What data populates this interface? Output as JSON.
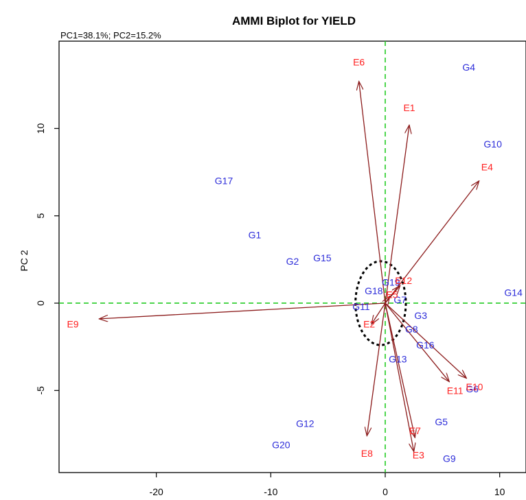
{
  "chart_data": {
    "type": "scatter",
    "title": "AMMI Biplot for YIELD",
    "subtitle": "PC1=38.1%; PC2=15.2%",
    "xlabel": "",
    "ylabel": "PC 2",
    "xlim": [
      -28.5,
      12.3
    ],
    "ylim": [
      -9.7,
      15.0
    ],
    "x_ticks": [
      -20,
      -10,
      0,
      10
    ],
    "y_ticks": [
      10,
      5,
      0,
      -5
    ],
    "reference_lines": {
      "x": 0,
      "y": 0
    },
    "colors": {
      "genotype": "#2b2bd9",
      "environment": "#ff2020",
      "vector": "#8b1a1a",
      "refline": "#22cc22",
      "ellipse": "#000000"
    },
    "genotypes": [
      {
        "label": "G1",
        "x": -11.4,
        "y": 3.9
      },
      {
        "label": "G2",
        "x": -8.1,
        "y": 2.4
      },
      {
        "label": "G3",
        "x": 3.1,
        "y": -0.7
      },
      {
        "label": "G4",
        "x": 7.3,
        "y": 13.5
      },
      {
        "label": "G5",
        "x": 4.9,
        "y": -6.8
      },
      {
        "label": "G6",
        "x": 7.6,
        "y": -4.9
      },
      {
        "label": "G7",
        "x": 1.3,
        "y": 0.2
      },
      {
        "label": "G8",
        "x": 2.3,
        "y": -1.5
      },
      {
        "label": "G9",
        "x": 5.6,
        "y": -8.9
      },
      {
        "label": "G10",
        "x": 9.4,
        "y": 9.1
      },
      {
        "label": "G11",
        "x": -2.1,
        "y": -0.2
      },
      {
        "label": "G12",
        "x": -7.0,
        "y": -6.9
      },
      {
        "label": "G13",
        "x": 1.1,
        "y": -3.2
      },
      {
        "label": "G14",
        "x": 11.2,
        "y": 0.6
      },
      {
        "label": "G15",
        "x": -5.5,
        "y": 2.6
      },
      {
        "label": "G16",
        "x": 3.5,
        "y": -2.4
      },
      {
        "label": "G17",
        "x": -14.1,
        "y": 7.0
      },
      {
        "label": "G18",
        "x": -1.0,
        "y": 0.7
      },
      {
        "label": "G19",
        "x": 0.5,
        "y": 1.2
      },
      {
        "label": "G20",
        "x": -9.1,
        "y": -8.1
      }
    ],
    "environments": [
      {
        "label": "E1",
        "x": 2.1,
        "y": 10.2
      },
      {
        "label": "E2",
        "x": -1.2,
        "y": -1.2
      },
      {
        "label": "E3",
        "x": 2.5,
        "y": -8.5
      },
      {
        "label": "E4",
        "x": 8.2,
        "y": 7.0
      },
      {
        "label": "E5",
        "x": 0.4,
        "y": 0.4
      },
      {
        "label": "E6",
        "x": -2.3,
        "y": 12.7
      },
      {
        "label": "E7",
        "x": 2.6,
        "y": -7.7
      },
      {
        "label": "E8",
        "x": -1.6,
        "y": -7.6
      },
      {
        "label": "E9",
        "x": -25.0,
        "y": -0.9
      },
      {
        "label": "E10",
        "x": 7.1,
        "y": -4.3
      },
      {
        "label": "E11",
        "x": 5.6,
        "y": -4.5
      },
      {
        "label": "E12",
        "x": 1.3,
        "y": 1.0
      }
    ],
    "env_label_pos": [
      {
        "label": "E1",
        "x": 2.1,
        "y": 11.2
      },
      {
        "label": "E2",
        "x": -1.4,
        "y": -1.2
      },
      {
        "label": "E3",
        "x": 2.9,
        "y": -8.7
      },
      {
        "label": "E4",
        "x": 8.9,
        "y": 7.8
      },
      {
        "label": "E5",
        "x": 0.6,
        "y": 0.5
      },
      {
        "label": "E6",
        "x": -2.3,
        "y": 13.8
      },
      {
        "label": "E7",
        "x": 2.6,
        "y": -7.3
      },
      {
        "label": "E8",
        "x": -1.6,
        "y": -8.6
      },
      {
        "label": "E9",
        "x": -27.3,
        "y": -1.2
      },
      {
        "label": "E10",
        "x": 7.8,
        "y": -4.8
      },
      {
        "label": "E11",
        "x": 6.1,
        "y": -5.0
      },
      {
        "label": "E12",
        "x": 1.6,
        "y": 1.3
      }
    ],
    "confidence_ellipse": {
      "cx": -0.4,
      "cy": 0.0,
      "rx": 2.2,
      "ry": 2.4
    }
  }
}
